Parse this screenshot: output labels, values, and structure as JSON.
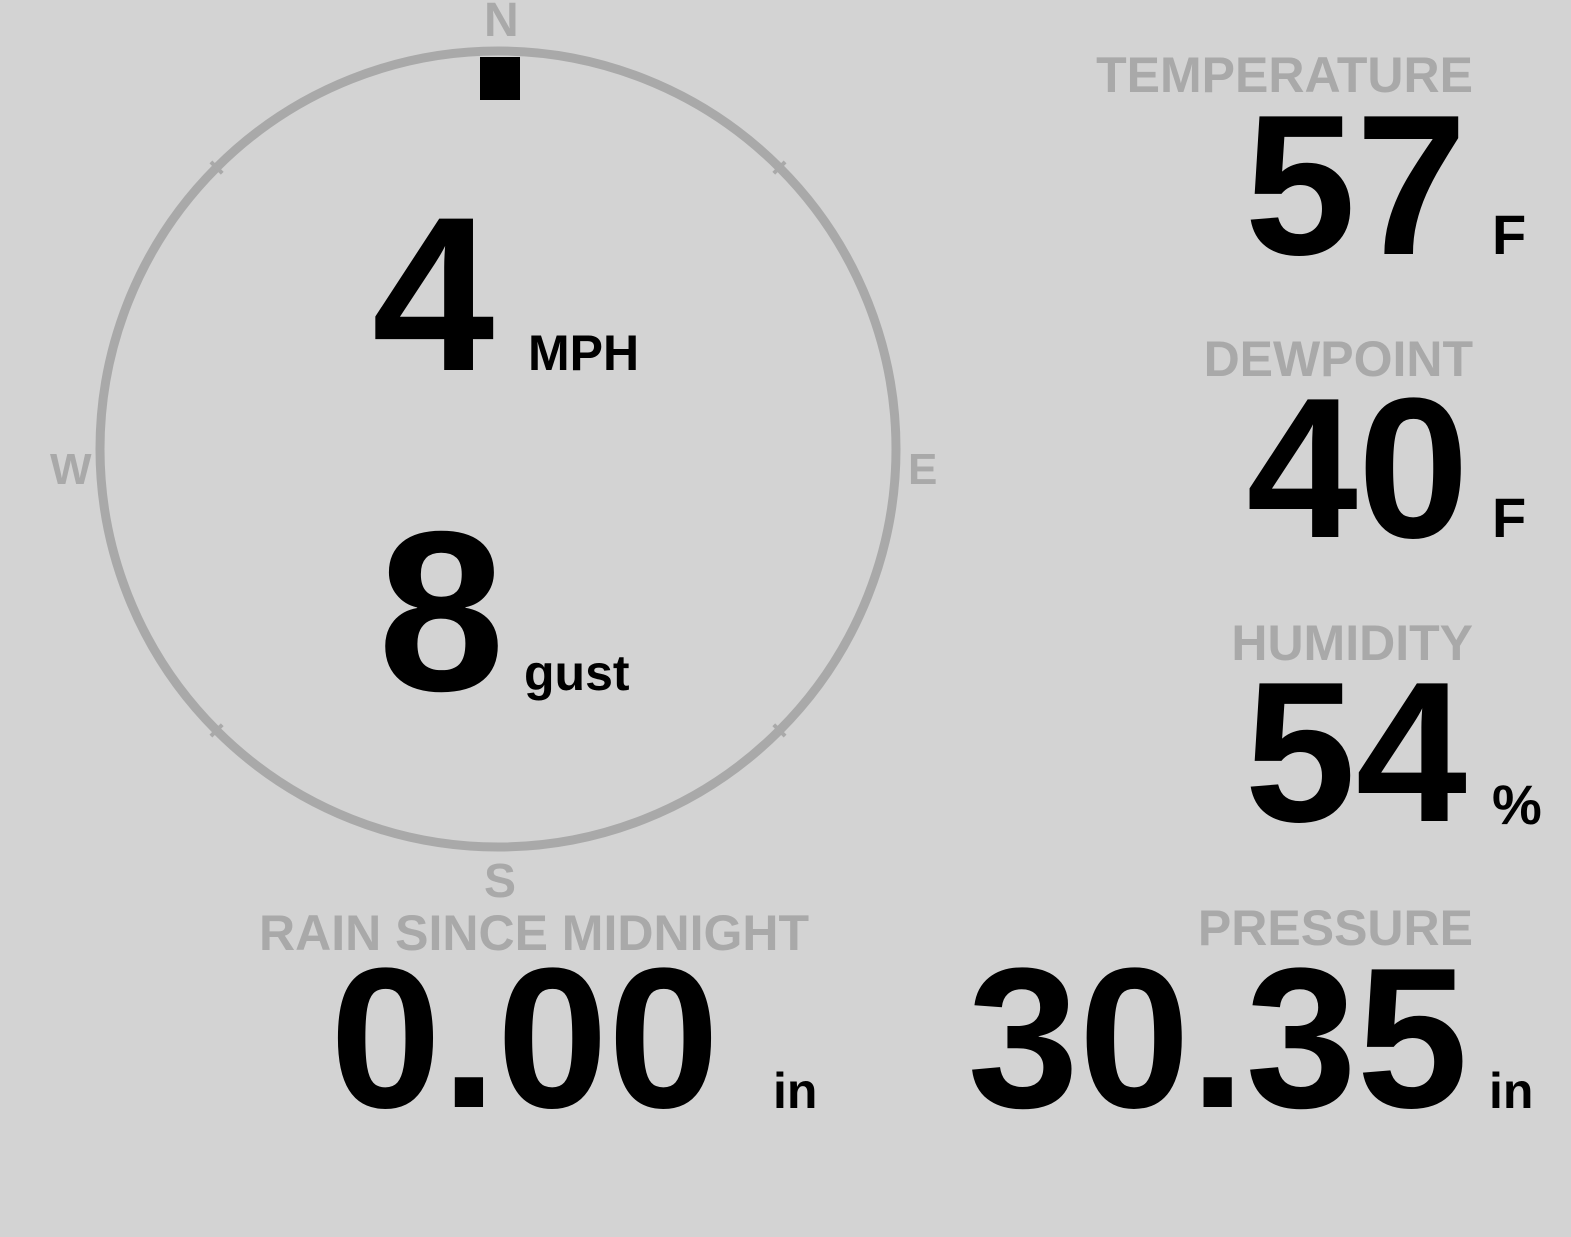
{
  "colors": {
    "background": "#d3d3d3",
    "label": "#a9a9a9",
    "value": "#000000"
  },
  "compass": {
    "north": "N",
    "east": "E",
    "south": "S",
    "west": "W",
    "wind_direction_deg": 0
  },
  "wind": {
    "speed": "4",
    "speed_unit": "MPH",
    "gust": "8",
    "gust_unit": "gust"
  },
  "temperature": {
    "label": "TEMPERATURE",
    "value": "57",
    "unit": "F"
  },
  "dewpoint": {
    "label": "DEWPOINT",
    "value": "40",
    "unit": "F"
  },
  "humidity": {
    "label": "HUMIDITY",
    "value": "54",
    "unit": "%"
  },
  "rain": {
    "label": "RAIN SINCE MIDNIGHT",
    "value": "0.00",
    "unit": "in"
  },
  "pressure": {
    "label": "PRESSURE",
    "value": "30.35",
    "unit": "in"
  }
}
